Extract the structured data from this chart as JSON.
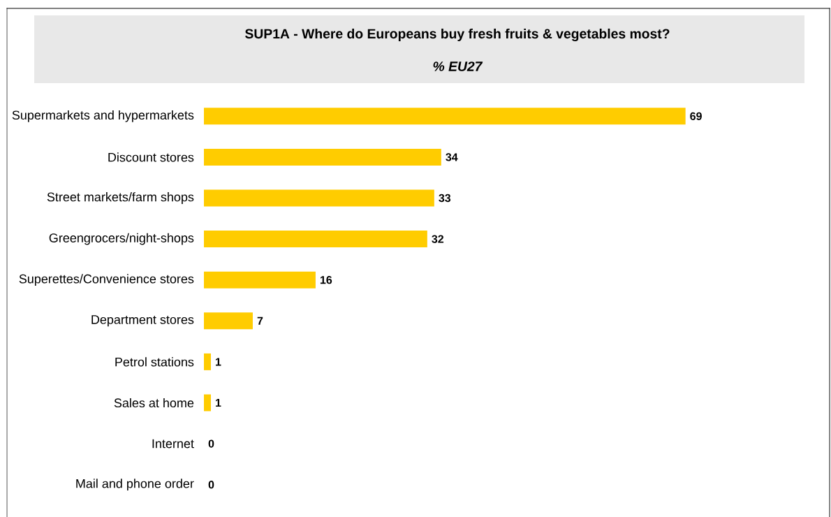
{
  "chart_data": {
    "type": "bar",
    "orientation": "horizontal",
    "title": "SUP1A - Where do Europeans buy fresh fruits & vegetables most?",
    "subtitle": "% EU27",
    "categories": [
      "Supermarkets and hypermarkets",
      "Discount stores",
      "Street markets/farm shops",
      "Greengrocers/night-shops",
      "Superettes/Convenience stores",
      "Department stores",
      "Petrol stations",
      "Sales at home",
      "Internet",
      "Mail and phone order"
    ],
    "values": [
      69,
      34,
      33,
      32,
      16,
      7,
      1,
      1,
      0,
      0
    ],
    "color": "#ffcc00",
    "data_labels": true
  }
}
